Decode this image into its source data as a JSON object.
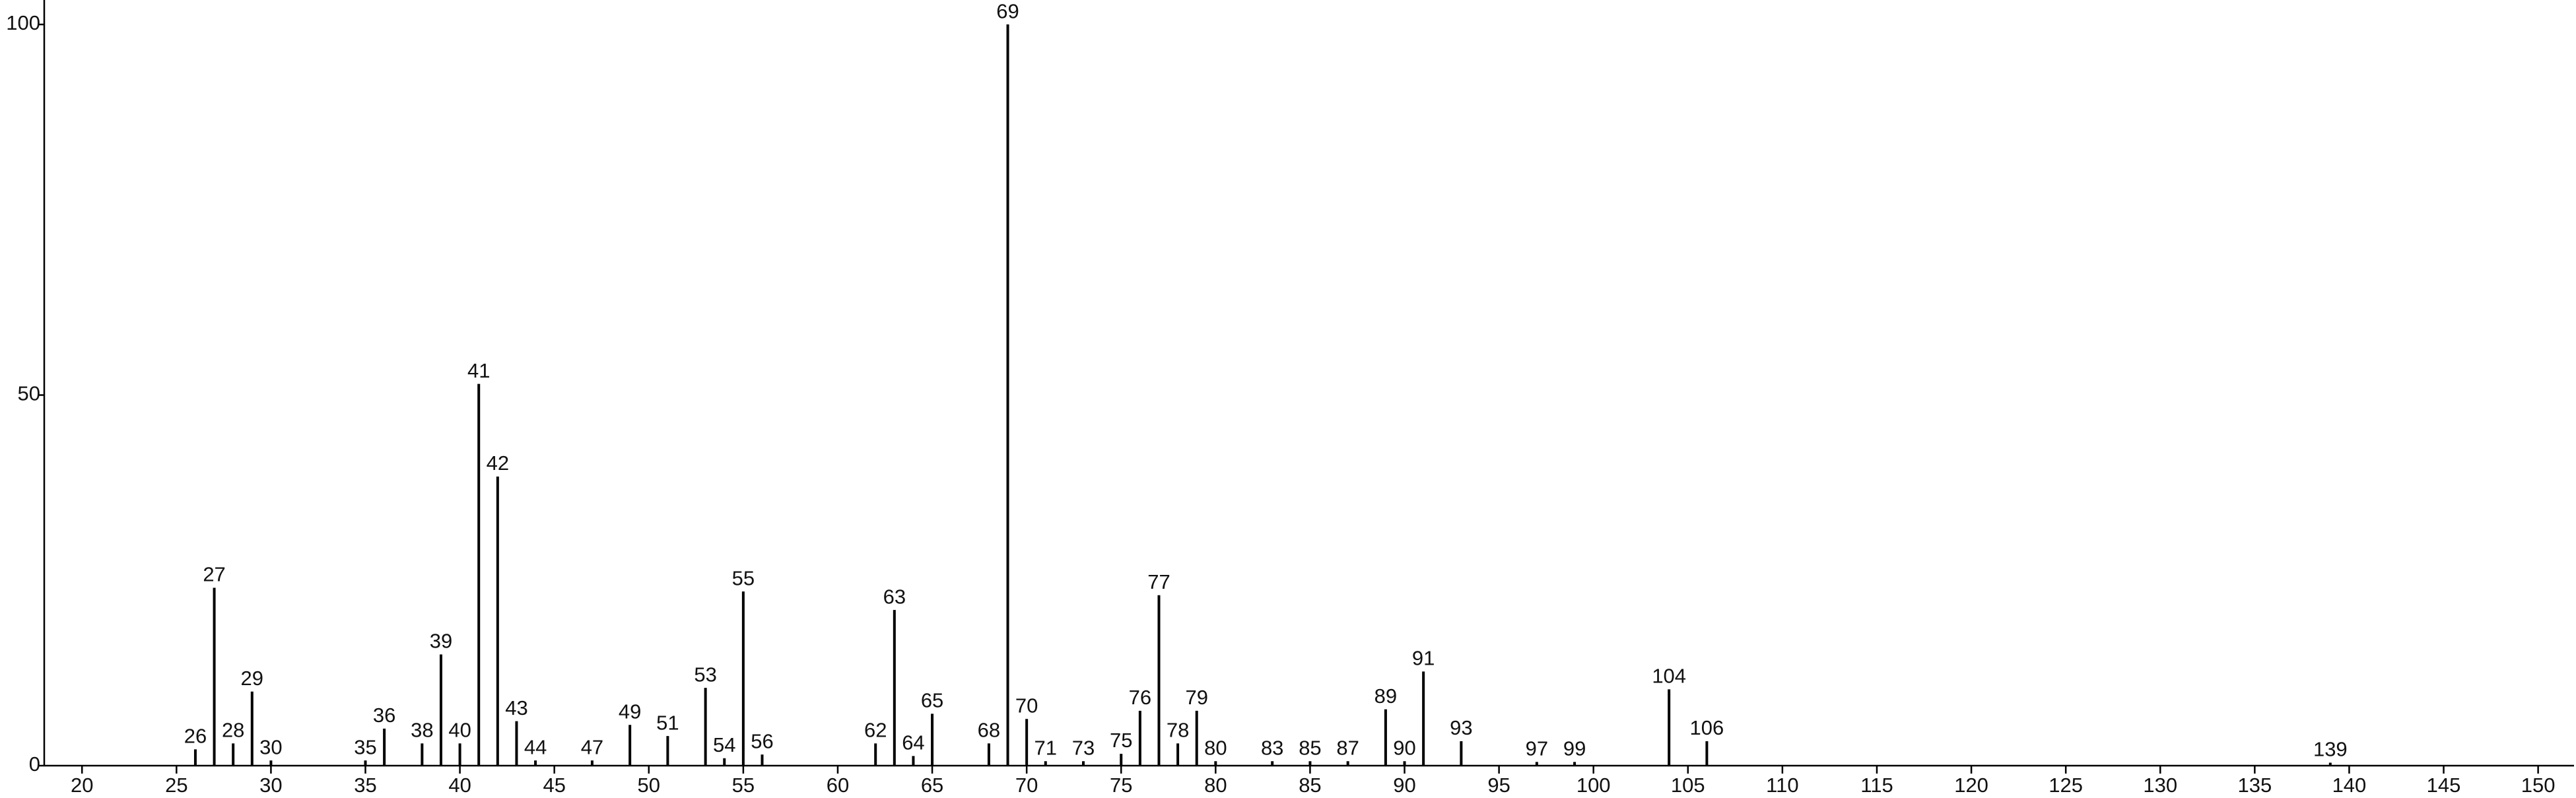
{
  "chart_data": {
    "type": "stick",
    "x": [
      26,
      27,
      28,
      29,
      30,
      35,
      36,
      38,
      39,
      40,
      41,
      42,
      43,
      44,
      47,
      49,
      51,
      53,
      54,
      55,
      56,
      62,
      63,
      64,
      65,
      68,
      69,
      70,
      71,
      73,
      75,
      76,
      77,
      78,
      79,
      80,
      83,
      85,
      87,
      89,
      90,
      91,
      93,
      97,
      99,
      104,
      106,
      139
    ],
    "values": [
      2.2,
      24,
      3,
      10,
      0.7,
      0.7,
      5,
      3,
      15,
      3,
      51.5,
      39,
      6,
      0.7,
      0.7,
      5.5,
      4,
      10.5,
      1,
      23.5,
      1.5,
      3,
      21,
      1.3,
      7,
      3,
      100,
      6.3,
      0.6,
      0.6,
      1.6,
      7.4,
      23,
      3,
      7.4,
      0.6,
      0.6,
      0.6,
      0.6,
      7.6,
      0.6,
      12.7,
      3.3,
      0.5,
      0.5,
      10.3,
      3.3,
      0.4
    ],
    "color": "#000000",
    "xlim": [
      18,
      151.9
    ],
    "xticks": [
      20,
      25,
      30,
      35,
      40,
      45,
      50,
      55,
      60,
      65,
      70,
      75,
      80,
      85,
      90,
      95,
      100,
      105,
      110,
      115,
      120,
      125,
      130,
      135,
      140,
      145,
      150
    ],
    "ylim": [
      0,
      103.3
    ],
    "yticks": [
      0,
      50,
      100
    ]
  }
}
